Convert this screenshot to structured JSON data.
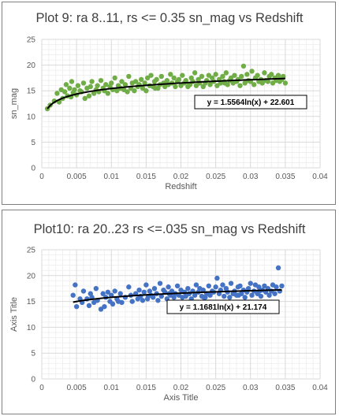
{
  "chart_data": [
    {
      "type": "scatter",
      "title": "Plot 9: ra 8..11, rs <= 0.35 sn_mag vs Redshift",
      "xlabel": "Redshift",
      "ylabel": "sn_mag",
      "xlim": [
        0,
        0.04
      ],
      "ylim": [
        0,
        25
      ],
      "x_ticks": [
        "0",
        "0.005",
        "0.01",
        "0.015",
        "0.02",
        "0.025",
        "0.03",
        "0.035",
        "0.04"
      ],
      "y_ticks": [
        "0",
        "5",
        "10",
        "15",
        "20",
        "25"
      ],
      "grid": true,
      "marker_color": "#70ad47",
      "trendline": {
        "type": "log",
        "a": 1.5564,
        "b": 22.601,
        "label": "y = 1.5564ln(x) + 22.601"
      },
      "series": [
        {
          "x": [
            0.0008,
            0.0012,
            0.0018,
            0.0022,
            0.0025,
            0.0028,
            0.003,
            0.0033,
            0.0035,
            0.0037,
            0.004,
            0.0042,
            0.0043,
            0.0045,
            0.0047,
            0.005,
            0.0052,
            0.0055,
            0.0057,
            0.006,
            0.0062,
            0.0065,
            0.0068,
            0.007,
            0.0072,
            0.0075,
            0.0078,
            0.008,
            0.0082,
            0.0085,
            0.0088,
            0.009,
            0.0092,
            0.0095,
            0.0098,
            0.01,
            0.0102,
            0.0105,
            0.0108,
            0.011,
            0.0113,
            0.0115,
            0.0118,
            0.012,
            0.0123,
            0.0125,
            0.0128,
            0.013,
            0.0133,
            0.0135,
            0.0138,
            0.014,
            0.0143,
            0.0145,
            0.0148,
            0.015,
            0.0152,
            0.0155,
            0.0157,
            0.016,
            0.0162,
            0.0165,
            0.0167,
            0.017,
            0.0172,
            0.0175,
            0.0177,
            0.018,
            0.0182,
            0.0185,
            0.0187,
            0.019,
            0.0192,
            0.0195,
            0.0197,
            0.02,
            0.0202,
            0.0205,
            0.0207,
            0.021,
            0.0212,
            0.0215,
            0.0217,
            0.022,
            0.0222,
            0.0225,
            0.0227,
            0.023,
            0.0232,
            0.0235,
            0.0237,
            0.024,
            0.0242,
            0.0245,
            0.0247,
            0.025,
            0.0252,
            0.0255,
            0.0257,
            0.026,
            0.0262,
            0.0265,
            0.0267,
            0.027,
            0.0272,
            0.0275,
            0.0277,
            0.028,
            0.0282,
            0.0285,
            0.0287,
            0.029,
            0.0292,
            0.0295,
            0.0297,
            0.03,
            0.0302,
            0.0305,
            0.0307,
            0.031,
            0.0312,
            0.0315,
            0.0317,
            0.032,
            0.0322,
            0.0325,
            0.0327,
            0.033,
            0.0332,
            0.0335,
            0.0337,
            0.034,
            0.0342,
            0.0345,
            0.0347,
            0.035,
            0.0163,
            0.0213,
            0.0263,
            0.0313,
            0.0343
          ],
          "y": [
            11.5,
            12.2,
            13.0,
            14.5,
            12.8,
            15.2,
            13.5,
            14.8,
            16.2,
            14.0,
            15.5,
            13.8,
            16.8,
            14.6,
            15.2,
            14.2,
            16.0,
            15.0,
            14.8,
            16.5,
            13.5,
            15.5,
            14.0,
            15.8,
            16.8,
            14.5,
            15.2,
            16.0,
            14.8,
            17.0,
            15.5,
            15.0,
            16.2,
            14.5,
            15.8,
            16.5,
            15.2,
            17.5,
            15.0,
            16.0,
            15.5,
            16.8,
            15.2,
            16.2,
            14.8,
            17.8,
            15.5,
            16.5,
            15.0,
            16.8,
            15.8,
            16.2,
            17.2,
            15.5,
            16.5,
            15.0,
            17.5,
            16.0,
            18.0,
            15.8,
            16.8,
            17.2,
            15.5,
            16.2,
            17.8,
            16.5,
            15.8,
            17.0,
            16.2,
            18.2,
            16.5,
            17.5,
            15.8,
            16.8,
            17.2,
            16.0,
            18.0,
            16.5,
            17.0,
            15.8,
            16.2,
            17.5,
            16.8,
            18.5,
            16.0,
            17.2,
            16.5,
            17.8,
            15.8,
            16.5,
            17.0,
            18.0,
            16.2,
            17.5,
            16.8,
            18.2,
            16.0,
            17.2,
            16.5,
            17.8,
            16.8,
            18.5,
            16.2,
            17.0,
            17.5,
            16.5,
            18.0,
            16.8,
            17.2,
            16.0,
            17.8,
            19.8,
            16.5,
            18.2,
            17.0,
            16.8,
            18.8,
            16.2,
            17.5,
            18.0,
            16.8,
            17.2,
            16.5,
            18.5,
            17.0,
            16.8,
            17.8,
            18.2,
            16.5,
            17.5,
            17.0,
            18.0,
            16.8,
            17.2,
            17.8,
            16.5,
            15.5,
            16.2,
            16.5,
            16.8,
            17.2
          ]
        }
      ]
    },
    {
      "type": "scatter",
      "title": "Plot10: ra 20..23 rs <=.035 sn_mag vs Redshift",
      "xlabel": "Axis Title",
      "ylabel": "Axis Title",
      "xlim": [
        0,
        0.04
      ],
      "ylim": [
        0,
        25
      ],
      "x_ticks": [
        "0",
        "0.005",
        "0.01",
        "0.015",
        "0.02",
        "0.025",
        "0.03",
        "0.035",
        "0.04"
      ],
      "y_ticks": [
        "0",
        "5",
        "10",
        "15",
        "20",
        "25"
      ],
      "grid": true,
      "marker_color": "#4472c4",
      "trendline": {
        "type": "log",
        "a": 1.1681,
        "b": 21.174,
        "label": "y = 1.1681ln(x) + 21.174"
      },
      "series": [
        {
          "x": [
            0.0045,
            0.0048,
            0.005,
            0.0055,
            0.0058,
            0.006,
            0.0065,
            0.0068,
            0.007,
            0.0072,
            0.0075,
            0.0078,
            0.008,
            0.0085,
            0.0088,
            0.009,
            0.0092,
            0.0095,
            0.0098,
            0.01,
            0.0102,
            0.0105,
            0.0108,
            0.011,
            0.0113,
            0.0115,
            0.012,
            0.0125,
            0.0128,
            0.013,
            0.0135,
            0.0138,
            0.014,
            0.0142,
            0.0145,
            0.0147,
            0.015,
            0.0152,
            0.0155,
            0.0157,
            0.016,
            0.0162,
            0.0165,
            0.0167,
            0.017,
            0.0172,
            0.0175,
            0.0177,
            0.018,
            0.0182,
            0.0185,
            0.0187,
            0.019,
            0.0192,
            0.0195,
            0.0197,
            0.02,
            0.0202,
            0.0205,
            0.0207,
            0.021,
            0.0212,
            0.0215,
            0.0217,
            0.022,
            0.0222,
            0.0225,
            0.0227,
            0.023,
            0.0232,
            0.0235,
            0.0237,
            0.024,
            0.0242,
            0.0245,
            0.0247,
            0.025,
            0.0252,
            0.0255,
            0.0257,
            0.026,
            0.0262,
            0.0265,
            0.0267,
            0.027,
            0.0272,
            0.0275,
            0.0277,
            0.028,
            0.0282,
            0.0285,
            0.0287,
            0.029,
            0.0292,
            0.0295,
            0.0297,
            0.03,
            0.0302,
            0.0305,
            0.0307,
            0.031,
            0.0312,
            0.0315,
            0.0317,
            0.032,
            0.0322,
            0.0325,
            0.0327,
            0.033,
            0.0332,
            0.0335,
            0.0337,
            0.034,
            0.0342,
            0.0345,
            0.0153,
            0.0183,
            0.0233,
            0.0283,
            0.0313
          ],
          "y": [
            16.2,
            18.2,
            14.0,
            15.5,
            14.8,
            17.0,
            15.5,
            14.2,
            16.5,
            15.8,
            14.8,
            17.5,
            15.2,
            13.5,
            16.5,
            14.0,
            15.8,
            16.8,
            15.0,
            16.2,
            14.5,
            17.0,
            15.5,
            15.0,
            16.5,
            14.8,
            15.8,
            17.8,
            16.2,
            15.0,
            16.5,
            15.5,
            17.2,
            16.0,
            15.2,
            16.8,
            18.2,
            15.5,
            17.0,
            16.2,
            15.8,
            17.5,
            16.5,
            15.2,
            18.5,
            16.0,
            17.2,
            16.8,
            15.5,
            17.8,
            16.2,
            17.0,
            15.8,
            16.5,
            18.0,
            16.2,
            17.2,
            15.8,
            16.8,
            16.0,
            17.5,
            16.5,
            15.5,
            17.0,
            16.2,
            18.2,
            16.8,
            17.5,
            16.0,
            17.2,
            15.8,
            16.5,
            18.0,
            16.2,
            17.0,
            16.8,
            17.8,
            19.5,
            16.5,
            17.2,
            18.2,
            16.0,
            17.5,
            16.8,
            15.8,
            18.5,
            16.5,
            17.0,
            16.2,
            17.8,
            18.0,
            16.5,
            17.2,
            15.8,
            16.8,
            17.5,
            18.5,
            16.2,
            17.0,
            18.2,
            16.5,
            17.8,
            16.0,
            17.2,
            18.0,
            16.8,
            17.5,
            16.2,
            17.0,
            18.2,
            16.5,
            17.8,
            21.5,
            17.0,
            18.0,
            16.0,
            16.5,
            15.8,
            16.2,
            17.0
          ]
        }
      ]
    }
  ]
}
